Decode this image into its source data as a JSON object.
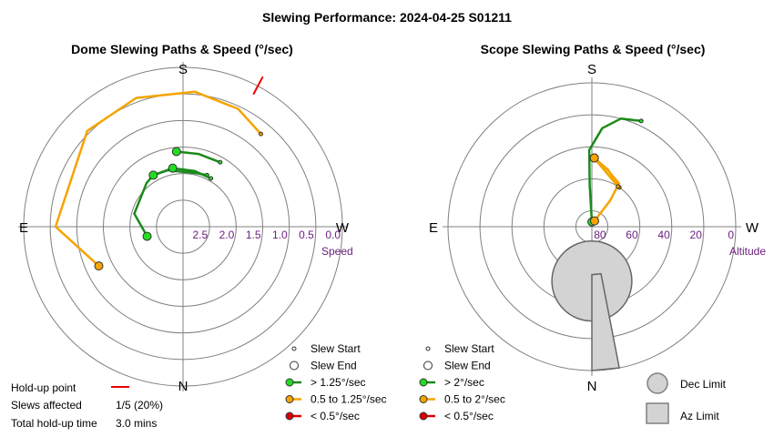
{
  "title": "Slewing Performance: 2024-04-25 S01211",
  "colors": {
    "fast": "#1a8a1a",
    "fast_marker": "#22dd22",
    "medium": "#f5a400",
    "slow": "#dd0000",
    "holdup": "#ee0000",
    "grid": "#808080",
    "tick": "#6a1b7f",
    "limit_fill": "#d3d3d3",
    "limit_stroke": "#808080"
  },
  "chart_data": [
    {
      "type": "polar-path",
      "title": "Dome Slewing Paths & Speed (°/sec)",
      "directions": {
        "top": "S",
        "bottom": "N",
        "left": "E",
        "right": "W"
      },
      "radial_label": "Speed",
      "radial_ticks": [
        "2.5",
        "2.0",
        "1.5",
        "1.0",
        "0.5",
        "0.0"
      ],
      "radial_values": [
        2.5,
        2.0,
        1.5,
        1.0,
        0.5,
        0.0
      ],
      "radial_max": 3.0,
      "rings": [
        2.5,
        2.0,
        1.5,
        1.0,
        0.5
      ],
      "holdup_point": {
        "az": 208,
        "speed_from": 0.18,
        "speed_to": -0.2
      },
      "paths": [
        {
          "speed_class": "medium",
          "points": [
            [
              65,
              1.25
            ],
            [
              90,
              0.6
            ],
            [
              135,
              0.45
            ],
            [
              160,
              0.42
            ],
            [
              185,
              0.45
            ],
            [
              205,
              0.55
            ],
            [
              220,
              0.72
            ]
          ]
        },
        {
          "speed_class": "fast",
          "points": [
            [
              75,
              2.3
            ],
            [
              105,
              2.05
            ],
            [
              140,
              1.93
            ],
            [
              150,
              1.88
            ],
            [
              170,
              1.88
            ]
          ]
        },
        {
          "speed_class": "fast",
          "points": [
            [
              150,
              1.88
            ],
            [
              165,
              1.9
            ],
            [
              195,
              1.96
            ],
            [
              205,
              1.93
            ]
          ]
        },
        {
          "speed_class": "fast",
          "points": [
            [
              170,
              1.88
            ],
            [
              192,
              1.93
            ],
            [
              210,
              1.95
            ]
          ]
        },
        {
          "speed_class": "fast",
          "points": [
            [
              175,
              1.58
            ],
            [
              192,
              1.6
            ],
            [
              210,
              1.6
            ]
          ]
        }
      ]
    },
    {
      "type": "polar-path",
      "title": "Scope Slewing Paths & Speed (°/sec)",
      "directions": {
        "top": "S",
        "bottom": "N",
        "left": "E",
        "right": "W"
      },
      "radial_label": "Altitude",
      "radial_ticks": [
        "80",
        "60",
        "40",
        "20",
        "0"
      ],
      "radial_values": [
        80,
        60,
        40,
        20,
        0
      ],
      "radial_max": 90,
      "rings": [
        80,
        60,
        40,
        20
      ],
      "dec_limit": {
        "az": 0,
        "alt": 56,
        "radius_deg": 25
      },
      "az_limit": {
        "az_from": 349,
        "az_to": 0,
        "alt_from": 60,
        "alt_to": 0
      },
      "paths": [
        {
          "speed_class": "fast",
          "points": [
            [
              180,
              87
            ],
            [
              177,
              64
            ],
            [
              178,
              42
            ],
            [
              186,
              28
            ],
            [
              195,
              20
            ],
            [
              205,
              17
            ]
          ]
        },
        {
          "speed_class": "medium",
          "points": [
            [
              205,
              86
            ],
            [
              215,
              70
            ],
            [
              212,
              58
            ],
            [
              195,
              53
            ],
            [
              182,
              47
            ]
          ]
        },
        {
          "speed_class": "medium",
          "points": [
            [
              182,
              47
            ],
            [
              196,
              53
            ],
            [
              215,
              60
            ]
          ]
        },
        {
          "speed_class": "medium",
          "points": [
            [
              182,
              47
            ],
            [
              195,
              55
            ],
            [
              213,
              60
            ]
          ]
        }
      ]
    }
  ],
  "left_legend": {
    "items": [
      {
        "label": "Slew Start",
        "marker": "start"
      },
      {
        "label": "Slew End",
        "marker": "end"
      },
      {
        "label": "> 1.25°/sec",
        "marker": "fast"
      },
      {
        "label": "0.5 to 1.25°/sec",
        "marker": "medium"
      },
      {
        "label": "< 0.5°/sec",
        "marker": "slow"
      }
    ]
  },
  "right_legend": {
    "items": [
      {
        "label": "Slew Start",
        "marker": "start"
      },
      {
        "label": "Slew End",
        "marker": "end"
      },
      {
        "label": "> 2°/sec",
        "marker": "fast"
      },
      {
        "label": "0.5 to 2°/sec",
        "marker": "medium"
      },
      {
        "label": "< 0.5°/sec",
        "marker": "slow"
      }
    ]
  },
  "limit_legend": {
    "dec_label": "Dec Limit",
    "az_label": "Az Limit"
  },
  "stats": {
    "holdup_label": "Hold-up point",
    "slews_label": "Slews affected",
    "slews_value": "1/5 (20%)",
    "time_label": "Total hold-up time",
    "time_value": "3.0 mins"
  }
}
